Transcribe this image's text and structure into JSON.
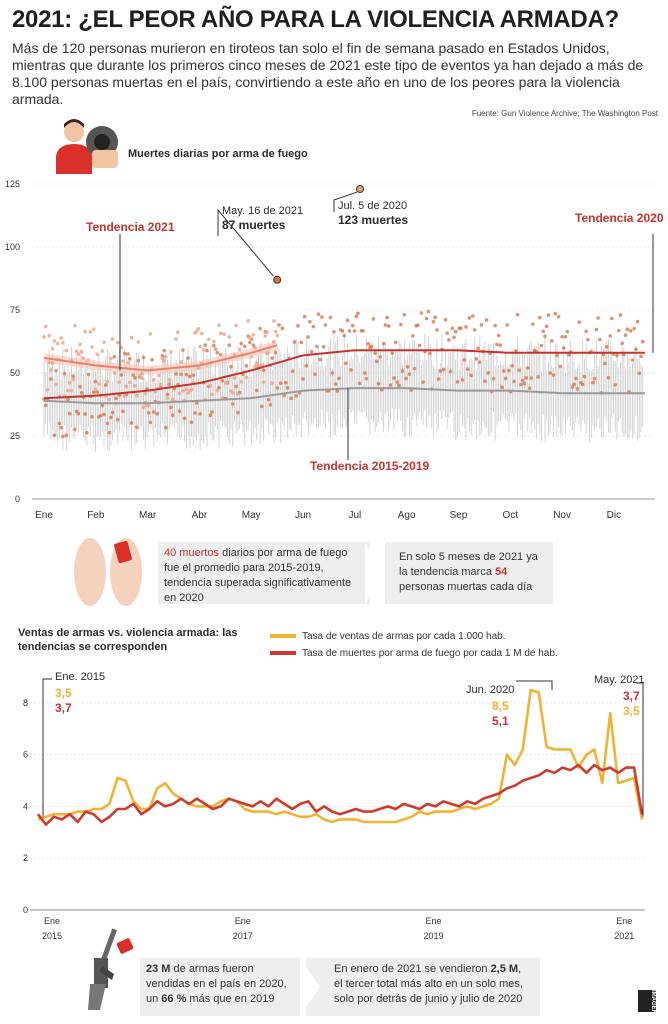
{
  "header": {
    "title": "2021: ¿EL PEOR AÑO PARA LA VIOLENCIA ARMADA?",
    "subtitle": "Más de 120 personas murieron en tiroteos tan solo el fin de semana pasado en Estados Unidos, mientras que durante los primeros cinco meses de 2021 este tipo de eventos ya han dejado a más de 8.100 personas muertas en el país, convirtiendo a este año en uno de los peores para la violencia armada.",
    "source": "Fuente: Gun Violence Archive; The Washington Post"
  },
  "chart1": {
    "title": "Muertes diarias por arma de fuego",
    "annotations": {
      "trend2021": "Tendencia 2021",
      "trend2020": "Tendencia 2020",
      "trend1519": "Tendencia 2015-2019",
      "may16_date": "May. 16 de 2021",
      "may16_value": "87 muertes",
      "jul5_date": "Jul. 5 de 2020",
      "jul5_value": "123 muertes"
    }
  },
  "info1": {
    "left_value": "40 muertos",
    "left_text": " diarios por arma de fuego fue el promedio para 2015-2019, tendencia superada significativamente en 2020",
    "right_text_a": "En solo 5 meses de 2021 ya la tendencia marca ",
    "right_value": "54",
    "right_text_b": " personas muertas cada día"
  },
  "chart2": {
    "title": "Ventas de armas vs. violencia armada: las tendencias se corresponden",
    "legend_sales": "Tasa de ventas de armas por cada 1.000 hab.",
    "legend_deaths": "Tasa de muertes por arma de fuego por cada 1 M de hab.",
    "ann_jan2015": {
      "label": "Ene. 2015",
      "sales": "3,5",
      "deaths": "3,7"
    },
    "ann_jun2020": {
      "label": "Jun. 2020",
      "sales": "8,5",
      "deaths": "5,1"
    },
    "ann_may2021": {
      "label": "May. 2021",
      "sales": "3,5",
      "deaths": "3,7"
    }
  },
  "info2": {
    "left_a": "23 M",
    "left_b": " de armas fueron vendidas en el país en 2020, un ",
    "left_c": "66 %",
    "left_d": " más que en 2019",
    "right_a": "En enero de 2021 se vendieron ",
    "right_b": "2,5 M",
    "right_c": ", el tercer total más alto en un solo mes, solo por detrás de junio y julio de 2020"
  },
  "credit": "IMAGEN",
  "colors": {
    "red": "#c8332d",
    "salmon": "#e8836a",
    "gray_trend": "#9a9a9a",
    "gold": "#f2b233",
    "deaths_line": "#d03a2c"
  },
  "chart_data": [
    {
      "type": "scatter",
      "title": "Muertes diarias por arma de fuego",
      "x_categories": [
        "Ene",
        "Feb",
        "Mar",
        "Abr",
        "May",
        "Jun",
        "Jul",
        "Ago",
        "Sep",
        "Oct",
        "Nov",
        "Dic"
      ],
      "ylim": [
        0,
        125
      ],
      "yticks": [
        0,
        25,
        50,
        75,
        100,
        125
      ],
      "grid": true,
      "series": [
        {
          "name": "Tendencia 2021",
          "x": [
            0,
            1,
            2,
            3,
            4,
            4.5
          ],
          "y": [
            56,
            53,
            51,
            53,
            58,
            61
          ]
        },
        {
          "name": "Tendencia 2020",
          "x": [
            0,
            1,
            2,
            3,
            4,
            5,
            6,
            7,
            8,
            9,
            10,
            11,
            11.6
          ],
          "y": [
            40,
            41,
            43,
            46,
            51,
            57,
            59,
            59,
            59,
            58,
            58,
            58,
            58
          ]
        },
        {
          "name": "Tendencia 2015-2019",
          "x": [
            0,
            1,
            2,
            3,
            4,
            5,
            6,
            7,
            8,
            9,
            10,
            11,
            11.6
          ],
          "y": [
            39,
            38,
            38,
            39,
            40,
            43,
            44,
            44,
            43,
            43,
            42,
            42,
            42
          ]
        }
      ],
      "highlights": [
        {
          "label": "May. 16 de 2021",
          "x": 4.5,
          "y": 87
        },
        {
          "label": "Jul. 5 de 2020",
          "x": 6.1,
          "y": 123
        }
      ]
    },
    {
      "type": "line",
      "title": "Ventas de armas vs. violencia armada: las tendencias se corresponden",
      "x_ticks": [
        "Ene 2015",
        "Ene 2017",
        "Ene 2019",
        "Ene 2021"
      ],
      "ylim": [
        0,
        9
      ],
      "yticks": [
        0,
        2,
        4,
        6,
        8
      ],
      "series": [
        {
          "name": "Tasa de ventas de armas por cada 1.000 hab.",
          "x": [
            0,
            1,
            2,
            3,
            4,
            5,
            6,
            7,
            8,
            9,
            10,
            11,
            12,
            13,
            14,
            15,
            16,
            17,
            18,
            19,
            20,
            21,
            22,
            23,
            24,
            25,
            26,
            27,
            28,
            29,
            30,
            31,
            32,
            33,
            34,
            35,
            36,
            37,
            38,
            39,
            40,
            41,
            42,
            43,
            44,
            45,
            46,
            47,
            48,
            49,
            50,
            51,
            52,
            53,
            54,
            55,
            56,
            57,
            58,
            59,
            60,
            61,
            62,
            63,
            64,
            65,
            66,
            67,
            68,
            69,
            70,
            71,
            72,
            73,
            74,
            75,
            76
          ],
          "y": [
            3.5,
            3.6,
            3.7,
            3.7,
            3.7,
            3.8,
            3.8,
            3.9,
            3.9,
            4.1,
            5.1,
            5.0,
            4.2,
            3.9,
            3.9,
            4.7,
            4.9,
            4.5,
            4.3,
            4.1,
            4.0,
            4.0,
            4.0,
            4.2,
            4.3,
            4.2,
            3.9,
            3.8,
            3.8,
            3.8,
            3.7,
            3.8,
            3.7,
            3.6,
            3.6,
            3.7,
            3.5,
            3.4,
            3.5,
            3.5,
            3.5,
            3.4,
            3.4,
            3.4,
            3.4,
            3.4,
            3.5,
            3.6,
            3.8,
            3.7,
            3.8,
            3.8,
            3.8,
            3.9,
            4.0,
            3.9,
            4.0,
            4.1,
            4.3,
            6.0,
            5.6,
            6.2,
            8.5,
            8.4,
            6.3,
            6.2,
            6.2,
            6.2,
            5.5,
            6.0,
            6.2,
            4.9,
            7.6,
            4.9,
            5.0,
            5.1,
            3.5
          ]
        },
        {
          "name": "Tasa de muertes por arma de fuego por cada 1 M de hab.",
          "x": [
            0,
            1,
            2,
            3,
            4,
            5,
            6,
            7,
            8,
            9,
            10,
            11,
            12,
            13,
            14,
            15,
            16,
            17,
            18,
            19,
            20,
            21,
            22,
            23,
            24,
            25,
            26,
            27,
            28,
            29,
            30,
            31,
            32,
            33,
            34,
            35,
            36,
            37,
            38,
            39,
            40,
            41,
            42,
            43,
            44,
            45,
            46,
            47,
            48,
            49,
            50,
            51,
            52,
            53,
            54,
            55,
            56,
            57,
            58,
            59,
            60,
            61,
            62,
            63,
            64,
            65,
            66,
            67,
            68,
            69,
            70,
            71,
            72,
            73,
            74,
            75,
            76
          ],
          "y": [
            3.7,
            3.3,
            3.6,
            3.5,
            3.7,
            3.4,
            3.8,
            3.7,
            3.4,
            3.6,
            3.9,
            3.9,
            4.1,
            3.7,
            3.9,
            4.2,
            4.0,
            4.1,
            4.3,
            4.1,
            4.3,
            4.1,
            3.9,
            4.0,
            4.3,
            4.2,
            4.1,
            4.0,
            4.2,
            4.0,
            4.3,
            4.1,
            3.9,
            4.1,
            4.2,
            3.8,
            4.0,
            3.8,
            3.7,
            3.8,
            3.9,
            3.8,
            3.8,
            3.9,
            4.0,
            3.9,
            4.1,
            4.0,
            3.9,
            4.1,
            4.0,
            4.2,
            4.1,
            4.0,
            4.2,
            4.1,
            4.3,
            4.4,
            4.5,
            4.7,
            4.8,
            5.0,
            5.1,
            5.2,
            5.4,
            5.3,
            5.5,
            5.4,
            5.6,
            5.3,
            5.6,
            5.4,
            5.5,
            5.3,
            5.5,
            5.5,
            3.7
          ]
        }
      ]
    }
  ]
}
